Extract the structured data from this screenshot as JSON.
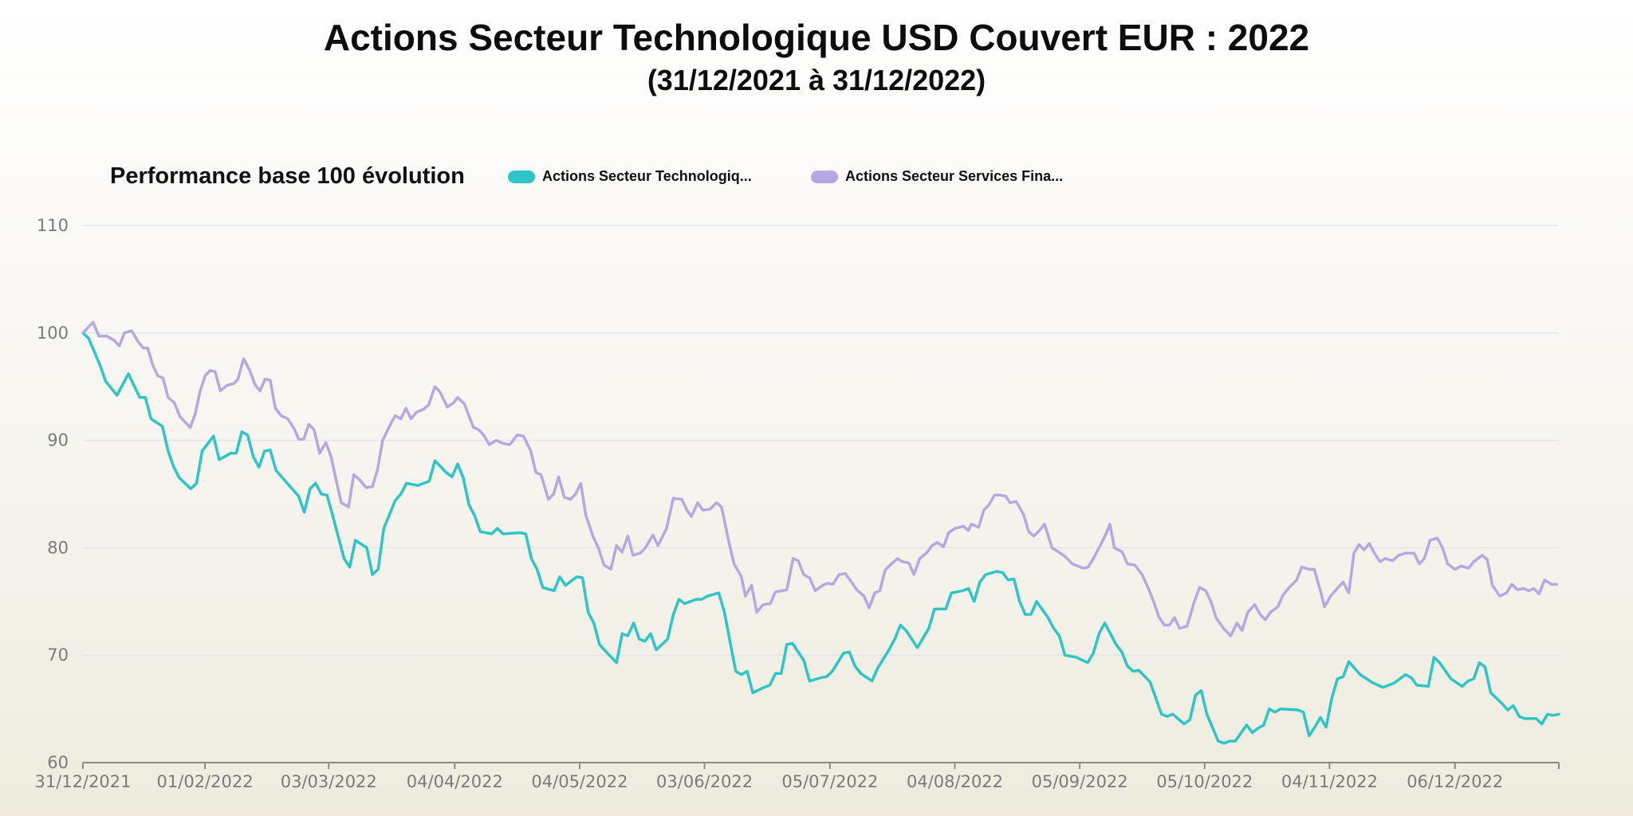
{
  "title": "Actions Secteur Technologique USD Couvert EUR : 2022",
  "subtitle": "(31/12/2021 à 31/12/2022)",
  "chart_data": {
    "type": "line",
    "title": "Performance base 100 évolution",
    "xlabel": "",
    "ylabel": "",
    "ylim": [
      60,
      110
    ],
    "yticks": [
      60,
      70,
      80,
      90,
      100,
      110
    ],
    "xlim": [
      0,
      260
    ],
    "x_unit": "trading day index",
    "xticks": [
      {
        "x": 0,
        "label": "31/12/2021"
      },
      {
        "x": 21.5,
        "label": "01/02/2022"
      },
      {
        "x": 43.3,
        "label": "03/03/2022"
      },
      {
        "x": 65.5,
        "label": "04/04/2022"
      },
      {
        "x": 87.5,
        "label": "04/05/2022"
      },
      {
        "x": 109.5,
        "label": "03/06/2022"
      },
      {
        "x": 131.6,
        "label": "05/07/2022"
      },
      {
        "x": 153.6,
        "label": "04/08/2022"
      },
      {
        "x": 175.6,
        "label": "05/09/2022"
      },
      {
        "x": 197.6,
        "label": "05/10/2022"
      },
      {
        "x": 219.6,
        "label": "04/11/2022"
      },
      {
        "x": 241.7,
        "label": "06/12/2022"
      }
    ],
    "grid": true,
    "legend_position": "top",
    "series": [
      {
        "name": "Actions Secteur Technologiq...",
        "color": "#2ec5c8",
        "x": [
          0,
          1,
          3,
          4,
          6,
          8,
          10,
          11,
          12,
          14,
          15,
          16,
          17,
          19,
          20,
          21,
          23,
          24,
          26,
          27,
          28,
          29,
          30,
          31,
          32,
          33,
          34,
          36,
          38,
          39,
          40,
          41,
          42,
          43,
          44,
          46,
          47,
          48,
          50,
          51,
          52,
          53,
          55,
          56,
          57,
          59,
          61,
          62,
          64,
          65,
          66,
          67,
          68,
          69,
          70,
          72,
          73,
          74,
          77,
          78,
          79,
          80,
          81,
          83,
          84,
          85,
          87,
          88,
          89,
          90,
          91,
          92,
          94,
          95,
          96,
          97,
          98,
          99,
          100,
          101,
          103,
          104,
          105,
          106,
          108,
          109,
          110,
          112,
          113,
          115,
          116,
          117,
          118,
          120,
          121,
          122,
          123,
          124,
          125,
          127,
          128,
          130,
          131,
          132,
          134,
          135,
          136,
          137,
          139,
          140,
          142,
          143,
          144,
          145,
          146,
          147,
          149,
          150,
          152,
          153,
          155,
          156,
          157,
          158,
          159,
          161,
          162,
          163,
          164,
          165,
          166,
          167,
          168,
          170,
          171,
          172,
          173,
          175,
          177,
          178,
          179,
          180,
          182,
          183,
          184,
          185,
          186,
          188,
          189,
          190,
          191,
          192,
          194,
          195,
          196,
          197,
          198,
          200,
          201,
          202,
          203,
          205,
          206,
          207,
          208,
          209,
          210,
          211,
          214,
          215,
          216,
          217,
          218,
          219,
          220,
          221,
          222,
          223,
          225,
          227,
          229,
          231,
          233,
          234,
          235,
          237,
          238,
          239,
          241,
          243,
          244,
          245,
          246,
          247,
          248,
          250,
          251,
          252,
          253,
          254,
          256,
          257,
          258,
          259,
          260
        ],
        "y": [
          100,
          99.5,
          97,
          95.5,
          94.2,
          96.2,
          94,
          94,
          92,
          91.3,
          89,
          87.5,
          86.5,
          85.5,
          86,
          89,
          90.4,
          88.2,
          88.8,
          88.8,
          90.8,
          90.5,
          88.5,
          87.5,
          89,
          89.1,
          87.2,
          86,
          84.8,
          83.3,
          85.5,
          86,
          85,
          84.9,
          83,
          79,
          78.2,
          80.7,
          80,
          77.5,
          78,
          81.8,
          84.4,
          85,
          86,
          85.8,
          86.2,
          88.1,
          87,
          86.6,
          87.8,
          86.5,
          84,
          83,
          81.5,
          81.3,
          81.8,
          81.3,
          81.4,
          81.3,
          79,
          78,
          76.3,
          76,
          77.3,
          76.5,
          77.3,
          77.2,
          74,
          73,
          71,
          70.4,
          69.3,
          72,
          71.8,
          73,
          71.5,
          71.3,
          72,
          70.5,
          71.5,
          73.8,
          75.2,
          74.8,
          75.2,
          75.2,
          75.5,
          75.8,
          74,
          68.5,
          68.2,
          68.5,
          66.5,
          67,
          67.2,
          68.3,
          68.3,
          71,
          71.1,
          69.5,
          67.6,
          67.9,
          68,
          68.5,
          70.2,
          70.3,
          69,
          68.3,
          67.6,
          68.8,
          70.5,
          71.5,
          72.8,
          72.3,
          71.5,
          70.7,
          72.5,
          74.3,
          74.3,
          75.8,
          76,
          76.2,
          75,
          76.8,
          77.5,
          77.8,
          77.7,
          77,
          77.1,
          75,
          73.8,
          73.8,
          75,
          73.5,
          72.5,
          71.8,
          70,
          69.8,
          69.3,
          70.2,
          72,
          73,
          71,
          70.3,
          69,
          68.5,
          68.6,
          67.5,
          66,
          64.5,
          64.3,
          64.5,
          63.6,
          64,
          66.3,
          66.7,
          64.5,
          62,
          61.8,
          62,
          62,
          63.5,
          62.8,
          63.2,
          63.5,
          65,
          64.7,
          65,
          64.9,
          64.7,
          62.5,
          63.3,
          64.2,
          63.3,
          66,
          67.8,
          68,
          69.4,
          68.2,
          67.5,
          67,
          67.4,
          68.2,
          67.9,
          67.2,
          67.1,
          69.8,
          69.3,
          67.8,
          67.1,
          67.6,
          67.8,
          69.3,
          68.9,
          66.5,
          65.5,
          64.9,
          65.3,
          64.3,
          64.1,
          64.1,
          63.6,
          64.5,
          64.4,
          64.5
        ]
      },
      {
        "name": "Actions Secteur Services Fina...",
        "color": "#b5a8e2",
        "x": [
          0,
          1.8,
          2.8,
          4.2,
          5.5,
          6.4,
          7.3,
          8.6,
          9.7,
          10.6,
          11.4,
          12.3,
          13.2,
          14.1,
          15,
          16.1,
          17.1,
          18,
          18.9,
          19.8,
          20.6,
          21.5,
          22.4,
          23.3,
          24.2,
          25.3,
          26.6,
          27.3,
          28.3,
          29.4,
          30.3,
          31.2,
          32.1,
          33,
          33.9,
          34.9,
          36.1,
          37.3,
          38,
          38.9,
          39.8,
          40.7,
          41.7,
          42.8,
          43.7,
          44.4,
          45.5,
          46.8,
          47.7,
          48.8,
          49.9,
          51,
          51.9,
          52.8,
          54,
          55,
          56,
          56.9,
          57.8,
          58.7,
          60,
          60.9,
          62,
          62.9,
          64.2,
          65.3,
          66,
          67.2,
          67.9,
          68.8,
          69.7,
          70.6,
          71.6,
          72.8,
          74.1,
          75.2,
          76.5,
          77.6,
          78.9,
          79.8,
          80.7,
          82,
          82.9,
          83.8,
          84.8,
          85.9,
          86.8,
          87.7,
          88.6,
          89.9,
          90.8,
          91.8,
          93,
          94,
          95,
          96,
          96.9,
          98.2,
          99.1,
          100.4,
          101.3,
          102.8,
          104,
          105.5,
          106.4,
          107.2,
          108.3,
          109.2,
          110.5,
          111.6,
          112.5,
          113.8,
          114.7,
          116,
          116.7,
          117.8,
          118.7,
          119.8,
          121.1,
          122,
          123.3,
          124,
          125.1,
          126,
          127,
          128,
          129,
          130.3,
          131.2,
          132.1,
          133.2,
          134.3,
          135.4,
          136.3,
          137.6,
          138.5,
          139.5,
          140.4,
          141.3,
          142.2,
          143.5,
          144.4,
          145.5,
          146.4,
          147.4,
          148.6,
          149.6,
          150.5,
          151.6,
          152.5,
          153.6,
          155.1,
          156,
          156.5,
          157.8,
          158.7,
          159.6,
          160.6,
          161.5,
          162.6,
          163.3,
          164.4,
          165.7,
          166.6,
          167.5,
          168.5,
          169.4,
          170.7,
          171.9,
          173,
          174.3,
          176.2,
          177.1,
          178,
          179.3,
          180.4,
          180.9,
          181.7,
          183.1,
          184,
          185.3,
          186.6,
          187.7,
          188.6,
          189.6,
          190.5,
          191.4,
          192.3,
          193.2,
          194.5,
          195.8,
          196.7,
          197.8,
          198.7,
          199.6,
          200.9,
          202.2,
          203.3,
          204.2,
          205.2,
          206.4,
          207.4,
          208.3,
          209.2,
          210.5,
          211.4,
          212.5,
          213.8,
          214.7,
          216,
          216.9,
          218,
          218.7,
          219.8,
          221.1,
          222,
          223,
          223.9,
          224.8,
          225.7,
          226.6,
          227.5,
          228.5,
          229.4,
          230.7,
          231.8,
          233,
          234.5,
          235.4,
          236.3,
          237.3,
          238.6,
          239.5,
          240.4,
          241.7,
          242.8,
          244.1,
          245,
          246.5,
          247.4,
          248.3,
          249.6,
          250.8,
          251.7,
          252.7,
          253.8,
          254.7,
          255.6,
          256.5,
          257.5,
          258.7,
          259.6
        ],
        "y": [
          100,
          101,
          99.7,
          99.7,
          99.3,
          98.8,
          100,
          100.2,
          99.2,
          98.6,
          98.6,
          97,
          96,
          95.8,
          94,
          93.5,
          92.2,
          91.7,
          91.2,
          92.5,
          94.5,
          96,
          96.5,
          96.4,
          94.6,
          95.1,
          95.3,
          95.7,
          97.6,
          96.5,
          95.2,
          94.6,
          95.7,
          95.6,
          93,
          92.3,
          92,
          91,
          90.1,
          90.1,
          91.5,
          91,
          88.8,
          89.8,
          88.5,
          86.8,
          84.2,
          83.8,
          86.8,
          86.3,
          85.6,
          85.7,
          87.3,
          90,
          91.3,
          92.3,
          92,
          93,
          92,
          92.6,
          92.9,
          93.3,
          95,
          94.5,
          93.1,
          93.5,
          94,
          93.4,
          92.4,
          91.2,
          91,
          90.5,
          89.6,
          90,
          89.7,
          89.6,
          90.5,
          90.4,
          89,
          87,
          86.8,
          84.5,
          85,
          86.6,
          84.7,
          84.5,
          85,
          86,
          83,
          81,
          80,
          78.4,
          78,
          80.2,
          79.6,
          81.1,
          79.3,
          79.5,
          80,
          81.2,
          80.2,
          81.8,
          84.6,
          84.5,
          83.5,
          82.9,
          84.2,
          83.5,
          83.6,
          84.2,
          83.8,
          80.5,
          78.5,
          77.3,
          75.5,
          76.5,
          74,
          74.7,
          74.8,
          75.9,
          76,
          76.1,
          79,
          78.8,
          77.5,
          77.2,
          76,
          76.5,
          76.7,
          76.6,
          77.5,
          77.6,
          76.8,
          76.1,
          75.5,
          74.4,
          75.8,
          76,
          77.9,
          78.4,
          79,
          78.7,
          78.6,
          77.5,
          79,
          79.5,
          80.2,
          80.5,
          80.1,
          81.4,
          81.8,
          82,
          81.6,
          82.2,
          81.9,
          83.5,
          84,
          84.9,
          84.9,
          84.8,
          84.2,
          84.3,
          83.1,
          81.5,
          81.1,
          81.6,
          82.2,
          80,
          79.6,
          79.2,
          78.5,
          78.1,
          78.2,
          79,
          80.3,
          81.5,
          82.2,
          80,
          79.6,
          78.5,
          78.4,
          77.5,
          76.2,
          75,
          73.5,
          72.8,
          72.8,
          73.5,
          72.5,
          72.7,
          75,
          76.3,
          76,
          75,
          73.5,
          72.5,
          71.8,
          73,
          72.3,
          74,
          74.7,
          73.8,
          73.3,
          74,
          74.5,
          75.6,
          76.3,
          77,
          78.2,
          78,
          78,
          76,
          74.5,
          75.5,
          76.3,
          76.8,
          75.8,
          79.5,
          80.3,
          79.8,
          80.4,
          79.5,
          78.7,
          79,
          78.8,
          79.3,
          79.5,
          79.5,
          78.5,
          79,
          80.7,
          80.9,
          80,
          78.5,
          78,
          78.3,
          78.1,
          78.7,
          79.3,
          78.9,
          76.5,
          75.5,
          75.8,
          76.6,
          76.1,
          76.2,
          76,
          76.2,
          75.7,
          77,
          76.6,
          76.6
        ]
      }
    ]
  }
}
